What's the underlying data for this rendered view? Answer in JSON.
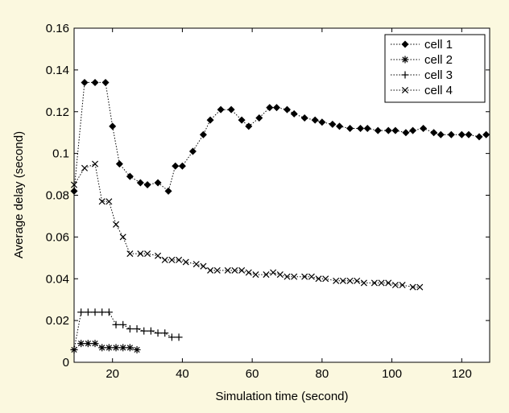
{
  "colors": {
    "background": "#fbf8df",
    "plot_area": "#ffffff",
    "ink": "#000000"
  },
  "chart_data": {
    "type": "line",
    "title": "",
    "xlabel": "Simulation time (second)",
    "ylabel": "Average delay (second)",
    "xlim": [
      9,
      128
    ],
    "ylim": [
      0,
      0.16
    ],
    "xticks": [
      20,
      40,
      60,
      80,
      100,
      120
    ],
    "xtick_labels": [
      "20",
      "40",
      "60",
      "80",
      "100",
      "120"
    ],
    "yticks": [
      0,
      0.02,
      0.04,
      0.06,
      0.08,
      0.1,
      0.12,
      0.14,
      0.16
    ],
    "ytick_labels": [
      "0",
      "0.02",
      "0.04",
      "0.06",
      "0.08",
      "0.1",
      "0.12",
      "0.14",
      "0.16"
    ],
    "grid": false,
    "legend_position": "top-right",
    "series": [
      {
        "name": "cell 1",
        "marker": "diamond",
        "x": [
          9,
          12,
          15,
          18,
          20,
          22,
          25,
          28,
          30,
          33,
          36,
          38,
          40,
          43,
          46,
          48,
          51,
          54,
          57,
          59,
          62,
          65,
          67,
          70,
          72,
          75,
          78,
          80,
          83,
          85,
          88,
          91,
          93,
          96,
          99,
          101,
          104,
          106,
          109,
          112,
          114,
          117,
          120,
          122,
          125,
          127
        ],
        "y": [
          0.082,
          0.134,
          0.134,
          0.134,
          0.113,
          0.095,
          0.089,
          0.086,
          0.085,
          0.086,
          0.082,
          0.094,
          0.094,
          0.101,
          0.109,
          0.116,
          0.121,
          0.121,
          0.116,
          0.113,
          0.117,
          0.122,
          0.122,
          0.121,
          0.119,
          0.117,
          0.116,
          0.115,
          0.114,
          0.113,
          0.112,
          0.112,
          0.112,
          0.111,
          0.111,
          0.111,
          0.11,
          0.111,
          0.112,
          0.11,
          0.109,
          0.109,
          0.109,
          0.109,
          0.108,
          0.109
        ]
      },
      {
        "name": "cell 2",
        "marker": "asterisk",
        "x": [
          9,
          11,
          13,
          15,
          17,
          19,
          21,
          23,
          25,
          27
        ],
        "y": [
          0.006,
          0.009,
          0.009,
          0.009,
          0.007,
          0.007,
          0.007,
          0.007,
          0.007,
          0.006
        ]
      },
      {
        "name": "cell 3",
        "marker": "plus",
        "x": [
          9,
          11,
          13,
          15,
          17,
          19,
          21,
          23,
          25,
          27,
          29,
          31,
          33,
          35,
          37,
          39
        ],
        "y": [
          0.006,
          0.024,
          0.024,
          0.024,
          0.024,
          0.024,
          0.018,
          0.018,
          0.016,
          0.016,
          0.015,
          0.015,
          0.014,
          0.014,
          0.012,
          0.012
        ]
      },
      {
        "name": "cell 4",
        "marker": "x",
        "x": [
          9,
          12,
          15,
          17,
          19,
          21,
          23,
          25,
          28,
          30,
          33,
          35,
          37,
          39,
          41,
          44,
          46,
          48,
          50,
          53,
          55,
          57,
          59,
          61,
          64,
          66,
          68,
          70,
          72,
          75,
          77,
          79,
          81,
          84,
          86,
          88,
          90,
          92,
          95,
          97,
          99,
          101,
          103,
          106,
          108
        ],
        "y": [
          0.085,
          0.093,
          0.095,
          0.077,
          0.077,
          0.066,
          0.06,
          0.052,
          0.052,
          0.052,
          0.051,
          0.049,
          0.049,
          0.049,
          0.048,
          0.047,
          0.046,
          0.044,
          0.044,
          0.044,
          0.044,
          0.044,
          0.043,
          0.042,
          0.042,
          0.043,
          0.042,
          0.041,
          0.041,
          0.041,
          0.041,
          0.04,
          0.04,
          0.039,
          0.039,
          0.039,
          0.039,
          0.038,
          0.038,
          0.038,
          0.038,
          0.037,
          0.037,
          0.036,
          0.036
        ]
      }
    ]
  }
}
